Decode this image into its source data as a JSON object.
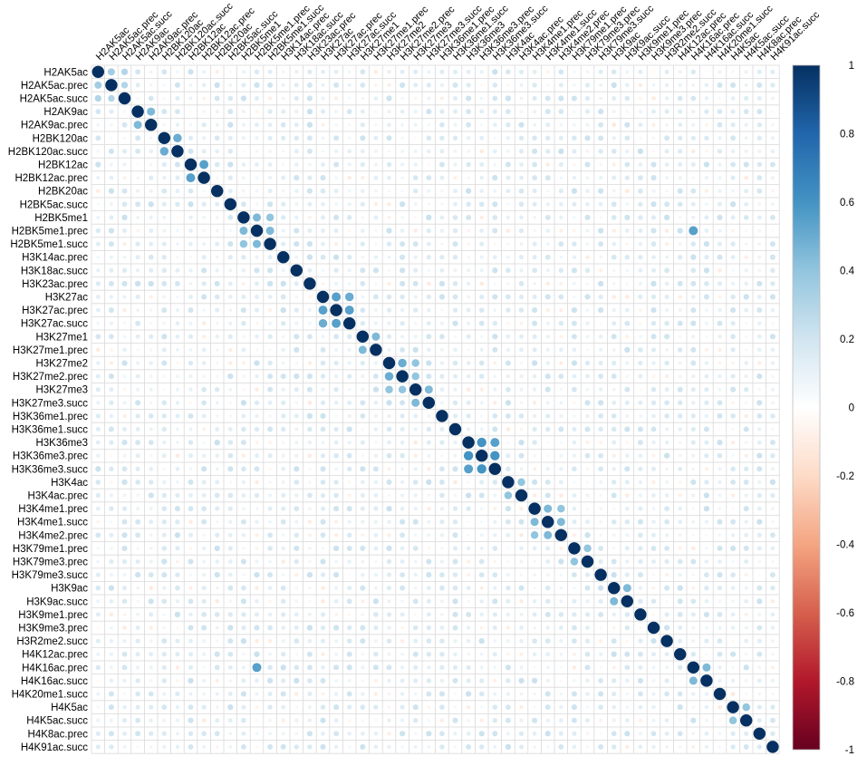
{
  "chart_data": {
    "type": "heatmap",
    "variant": "correlation-circle-matrix",
    "labels": [
      "H2AK5ac",
      "H2AK5ac.prec",
      "H2AK5ac.succ",
      "H2AK9ac",
      "H2AK9ac.prec",
      "H2BK120ac",
      "H2BK120ac.succ",
      "H2BK12ac",
      "H2BK12ac.prec",
      "H2BK20ac",
      "H2BK5ac.succ",
      "H2BK5me1",
      "H2BK5me1.prec",
      "H2BK5me1.succ",
      "H3K14ac.prec",
      "H3K18ac.succ",
      "H3K23ac.prec",
      "H3K27ac",
      "H3K27ac.prec",
      "H3K27ac.succ",
      "H3K27me1",
      "H3K27me1.prec",
      "H3K27me2",
      "H3K27me2.prec",
      "H3K27me3",
      "H3K27me3.succ",
      "H3K36me1.prec",
      "H3K36me1.succ",
      "H3K36me3",
      "H3K36me3.prec",
      "H3K36me3.succ",
      "H3K4ac",
      "H3K4ac.prec",
      "H3K4me1.prec",
      "H3K4me1.succ",
      "H3K4me2.prec",
      "H3K79me1.prec",
      "H3K79me3.prec",
      "H3K79me3.succ",
      "H3K9ac",
      "H3K9ac.succ",
      "H3K9me1.prec",
      "H3K9me3.prec",
      "H3R2me2.succ",
      "H4K12ac.prec",
      "H4K16ac.prec",
      "H4K16ac.succ",
      "H4K20me1.succ",
      "H4K5ac",
      "H4K5ac.succ",
      "H4K8ac.prec",
      "H4K91ac.succ"
    ],
    "strong_pairs": [
      [
        0,
        1,
        0.35
      ],
      [
        0,
        2,
        0.3
      ],
      [
        1,
        2,
        0.3
      ],
      [
        3,
        4,
        0.45
      ],
      [
        5,
        6,
        0.5
      ],
      [
        7,
        8,
        0.55
      ],
      [
        11,
        12,
        0.45
      ],
      [
        11,
        13,
        0.4
      ],
      [
        12,
        13,
        0.45
      ],
      [
        17,
        18,
        0.55
      ],
      [
        17,
        19,
        0.5
      ],
      [
        18,
        19,
        0.55
      ],
      [
        20,
        21,
        0.45
      ],
      [
        22,
        23,
        0.5
      ],
      [
        22,
        24,
        0.4
      ],
      [
        23,
        24,
        0.4
      ],
      [
        24,
        25,
        0.45
      ],
      [
        28,
        29,
        0.6
      ],
      [
        28,
        30,
        0.55
      ],
      [
        29,
        30,
        0.6
      ],
      [
        31,
        32,
        0.4
      ],
      [
        33,
        34,
        0.45
      ],
      [
        33,
        35,
        0.4
      ],
      [
        34,
        35,
        0.45
      ],
      [
        36,
        37,
        0.4
      ],
      [
        39,
        40,
        0.45
      ],
      [
        45,
        46,
        0.45
      ],
      [
        48,
        49,
        0.4
      ],
      [
        12,
        45,
        0.55
      ]
    ],
    "scale": {
      "min": -1,
      "max": 1,
      "ticks": [
        "1",
        "0.8",
        "0.6",
        "0.4",
        "0.2",
        "0",
        "-0.2",
        "-0.4",
        "-0.6",
        "-0.8",
        "-1"
      ],
      "colors": [
        "#67001f",
        "#b2182b",
        "#d6604d",
        "#f4a582",
        "#fddbc7",
        "#ffffff",
        "#d1e5f0",
        "#92c5de",
        "#4393c3",
        "#2166ac",
        "#053061"
      ]
    },
    "diagonal_value": 1,
    "grid": true,
    "legend_position": "right"
  }
}
